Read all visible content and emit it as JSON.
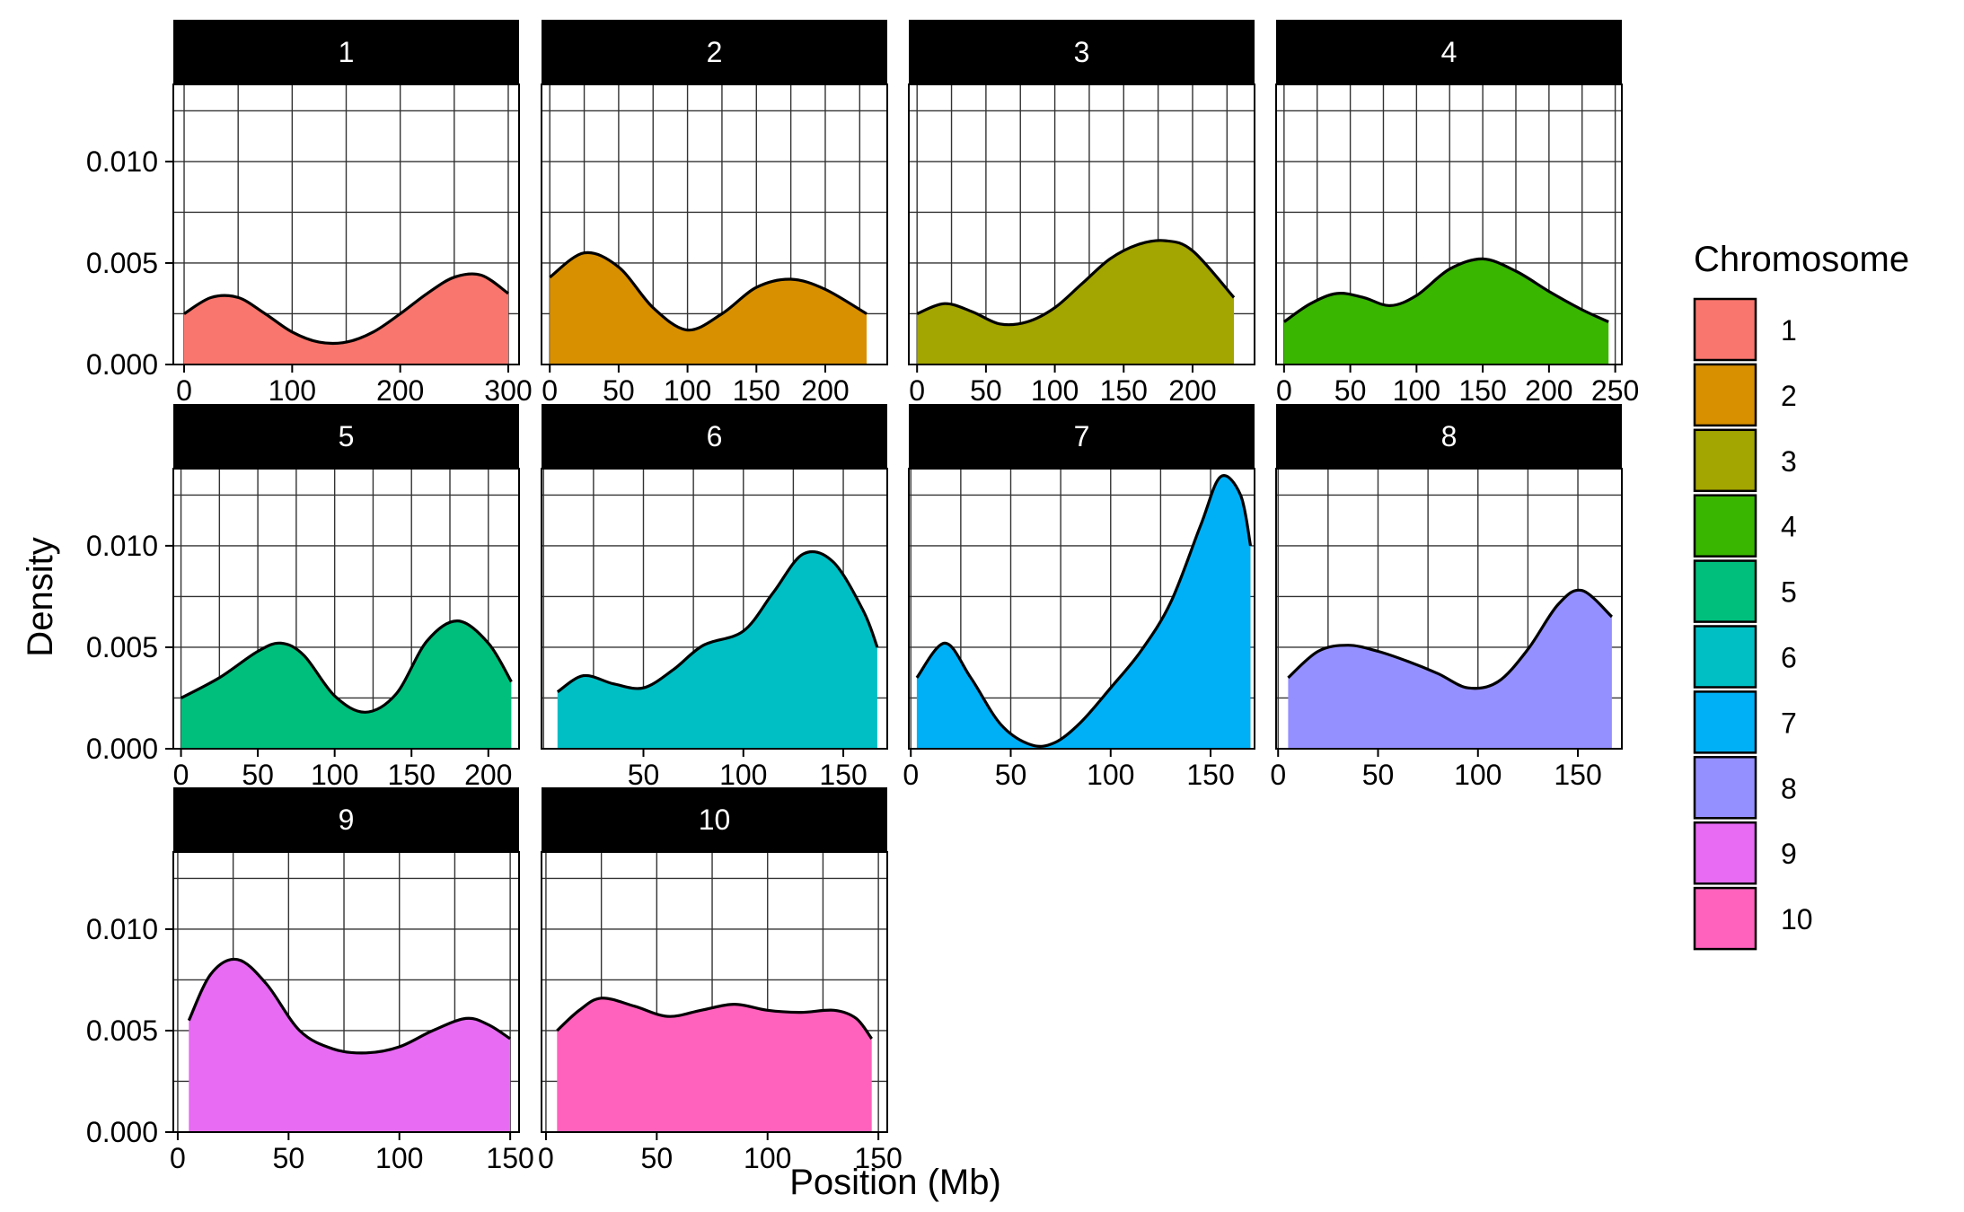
{
  "chart_data": {
    "type": "area",
    "facet_by": "Chromosome",
    "xlabel": "Position (Mb)",
    "ylabel": "Density",
    "ylim": [
      0,
      0.0138
    ],
    "y_ticks": [
      "0.000",
      "0.005",
      "0.010"
    ],
    "y_tick_values": [
      0,
      0.005,
      0.01
    ],
    "grid": true,
    "legend": {
      "title": "Chromosome",
      "position": "right",
      "entries": [
        "1",
        "2",
        "3",
        "4",
        "5",
        "6",
        "7",
        "8",
        "9",
        "10"
      ]
    },
    "panels": [
      {
        "name": "1",
        "color": "#F8766D",
        "xlim": [
          -10,
          310
        ],
        "x_ticks": [
          0,
          100,
          200,
          300
        ],
        "x": [
          0,
          25,
          50,
          75,
          100,
          125,
          150,
          175,
          200,
          225,
          250,
          275,
          300
        ],
        "y": [
          0.0025,
          0.0033,
          0.0033,
          0.0025,
          0.0016,
          0.0011,
          0.0011,
          0.0016,
          0.0025,
          0.0035,
          0.0043,
          0.0044,
          0.0035
        ]
      },
      {
        "name": "2",
        "color": "#D89000",
        "xlim": [
          -6,
          245
        ],
        "x_ticks": [
          0,
          50,
          100,
          150,
          200
        ],
        "x": [
          0,
          25,
          50,
          75,
          100,
          125,
          150,
          175,
          200,
          230
        ],
        "y": [
          0.0043,
          0.0055,
          0.0048,
          0.0028,
          0.0017,
          0.0025,
          0.0038,
          0.0042,
          0.0037,
          0.0025
        ]
      },
      {
        "name": "3",
        "color": "#A3A500",
        "xlim": [
          -6,
          245
        ],
        "x_ticks": [
          0,
          50,
          100,
          150,
          200
        ],
        "x": [
          0,
          20,
          40,
          60,
          80,
          100,
          120,
          140,
          160,
          180,
          200,
          230
        ],
        "y": [
          0.0025,
          0.003,
          0.0026,
          0.002,
          0.0021,
          0.0028,
          0.004,
          0.0052,
          0.0059,
          0.0061,
          0.0056,
          0.0033
        ]
      },
      {
        "name": "4",
        "color": "#39B600",
        "xlim": [
          -6,
          255
        ],
        "x_ticks": [
          0,
          50,
          100,
          150,
          200,
          250
        ],
        "x": [
          0,
          20,
          40,
          60,
          80,
          100,
          125,
          150,
          175,
          200,
          225,
          245
        ],
        "y": [
          0.0021,
          0.003,
          0.0035,
          0.0033,
          0.0029,
          0.0034,
          0.0047,
          0.0052,
          0.0046,
          0.0036,
          0.0027,
          0.0021
        ]
      },
      {
        "name": "5",
        "color": "#00BF7D",
        "xlim": [
          -5,
          220
        ],
        "x_ticks": [
          0,
          50,
          100,
          150,
          200
        ],
        "x": [
          0,
          25,
          50,
          65,
          80,
          100,
          120,
          140,
          160,
          180,
          200,
          215
        ],
        "y": [
          0.0025,
          0.0035,
          0.0048,
          0.0052,
          0.0046,
          0.0026,
          0.0018,
          0.0027,
          0.0053,
          0.0063,
          0.0052,
          0.0033
        ]
      },
      {
        "name": "6",
        "color": "#00BFC4",
        "xlim": [
          -1,
          172
        ],
        "x_ticks": [
          50,
          100,
          150
        ],
        "x": [
          7,
          20,
          35,
          50,
          65,
          80,
          100,
          115,
          130,
          145,
          160,
          167
        ],
        "y": [
          0.0028,
          0.0036,
          0.0032,
          0.003,
          0.0039,
          0.0051,
          0.0058,
          0.0077,
          0.0096,
          0.0092,
          0.0068,
          0.005
        ]
      },
      {
        "name": "7",
        "color": "#00B0F6",
        "xlim": [
          -1,
          172
        ],
        "x_ticks": [
          0,
          50,
          100,
          150
        ],
        "x": [
          3,
          17,
          30,
          45,
          60,
          72,
          85,
          100,
          115,
          130,
          145,
          155,
          165,
          170
        ],
        "y": [
          0.0035,
          0.0052,
          0.0035,
          0.0012,
          0.0002,
          0.0003,
          0.0013,
          0.003,
          0.0048,
          0.0072,
          0.011,
          0.0134,
          0.0125,
          0.01
        ]
      },
      {
        "name": "8",
        "color": "#9590FF",
        "xlim": [
          -1,
          172
        ],
        "x_ticks": [
          0,
          50,
          100,
          150
        ],
        "x": [
          5,
          20,
          35,
          50,
          65,
          80,
          95,
          110,
          125,
          140,
          152,
          167
        ],
        "y": [
          0.0035,
          0.0048,
          0.0051,
          0.0048,
          0.0043,
          0.0037,
          0.003,
          0.0033,
          0.0049,
          0.0071,
          0.0078,
          0.0065
        ]
      },
      {
        "name": "9",
        "color": "#E76BF3",
        "xlim": [
          -2,
          154
        ],
        "x_ticks": [
          0,
          50,
          100,
          150
        ],
        "x": [
          5,
          15,
          27,
          40,
          55,
          70,
          85,
          100,
          115,
          130,
          140,
          150
        ],
        "y": [
          0.0055,
          0.0078,
          0.0085,
          0.0073,
          0.005,
          0.0041,
          0.0039,
          0.0042,
          0.005,
          0.0056,
          0.0053,
          0.0046
        ]
      },
      {
        "name": "10",
        "color": "#FF62BC",
        "xlim": [
          -2,
          154
        ],
        "x_ticks": [
          0,
          50,
          100,
          150
        ],
        "x": [
          5,
          15,
          25,
          40,
          55,
          70,
          85,
          100,
          115,
          130,
          140,
          147
        ],
        "y": [
          0.005,
          0.006,
          0.0066,
          0.0062,
          0.0057,
          0.006,
          0.0063,
          0.006,
          0.0059,
          0.006,
          0.0056,
          0.0046
        ]
      }
    ]
  }
}
